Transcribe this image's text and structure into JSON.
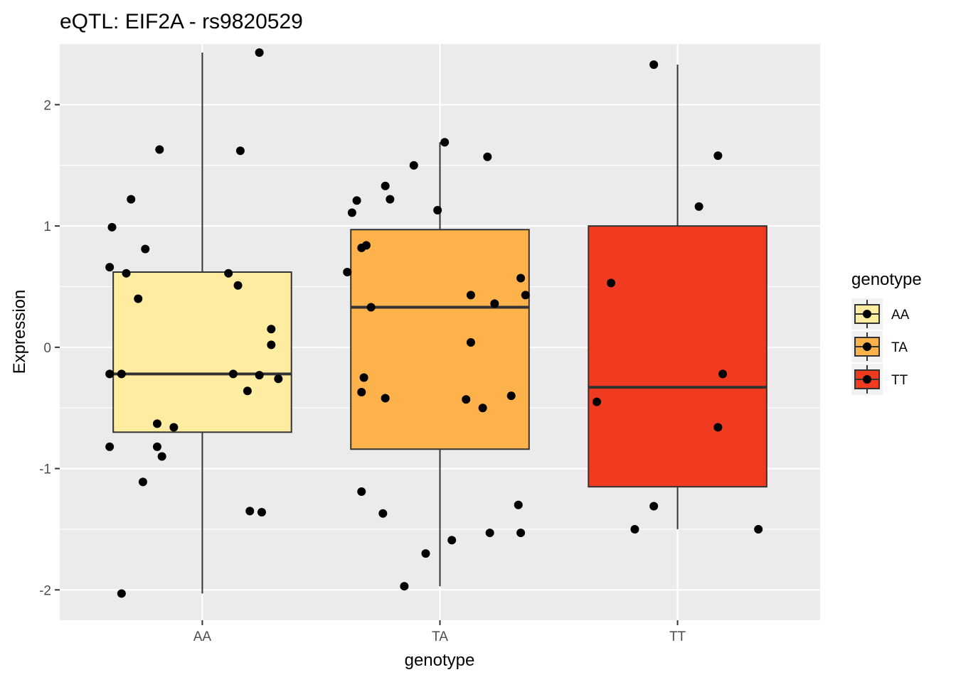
{
  "chart_data": {
    "type": "boxplot",
    "title": "eQTL: EIF2A - rs9820529",
    "xlabel": "genotype",
    "ylabel": "Expression",
    "categories": [
      "AA",
      "TA",
      "TT"
    ],
    "ylim": [
      -2.25,
      2.5
    ],
    "yticks": [
      -2,
      -1,
      0,
      1,
      2
    ],
    "ytick_labels": [
      "-2",
      "-1",
      "0",
      "1",
      "2"
    ],
    "grid": true,
    "legend": {
      "title": "genotype",
      "position": "right",
      "entries": [
        {
          "label": "AA",
          "color": "#FEEDA0"
        },
        {
          "label": "TA",
          "color": "#FDB24C"
        },
        {
          "label": "TT",
          "color": "#F03B20"
        }
      ]
    },
    "boxes": [
      {
        "category": "AA",
        "color": "#FEEDA0",
        "q1": -0.7,
        "median": -0.22,
        "q3": 0.62,
        "whisker_low": -2.03,
        "whisker_high": 2.43
      },
      {
        "category": "TA",
        "color": "#FDB24C",
        "q1": -0.84,
        "median": 0.33,
        "q3": 0.97,
        "whisker_low": -1.97,
        "whisker_high": 1.69
      },
      {
        "category": "TT",
        "color": "#F03B20",
        "q1": -1.15,
        "median": -0.33,
        "q3": 1.0,
        "whisker_low": -1.5,
        "whisker_high": 2.33
      }
    ],
    "points": [
      {
        "category": "AA",
        "jitter": 0.24,
        "y": 2.43
      },
      {
        "category": "AA",
        "jitter": -0.18,
        "y": 1.63
      },
      {
        "category": "AA",
        "jitter": 0.16,
        "y": 1.62
      },
      {
        "category": "AA",
        "jitter": -0.3,
        "y": 1.22
      },
      {
        "category": "AA",
        "jitter": -0.38,
        "y": 0.99
      },
      {
        "category": "AA",
        "jitter": -0.24,
        "y": 0.81
      },
      {
        "category": "AA",
        "jitter": -0.39,
        "y": 0.66
      },
      {
        "category": "AA",
        "jitter": -0.32,
        "y": 0.61
      },
      {
        "category": "AA",
        "jitter": 0.11,
        "y": 0.61
      },
      {
        "category": "AA",
        "jitter": 0.15,
        "y": 0.51
      },
      {
        "category": "AA",
        "jitter": -0.27,
        "y": 0.4
      },
      {
        "category": "AA",
        "jitter": 0.29,
        "y": 0.15
      },
      {
        "category": "AA",
        "jitter": 0.29,
        "y": 0.02
      },
      {
        "category": "AA",
        "jitter": -0.39,
        "y": -0.22
      },
      {
        "category": "AA",
        "jitter": -0.34,
        "y": -0.22
      },
      {
        "category": "AA",
        "jitter": 0.13,
        "y": -0.22
      },
      {
        "category": "AA",
        "jitter": 0.24,
        "y": -0.23
      },
      {
        "category": "AA",
        "jitter": 0.32,
        "y": -0.26
      },
      {
        "category": "AA",
        "jitter": 0.19,
        "y": -0.36
      },
      {
        "category": "AA",
        "jitter": -0.19,
        "y": -0.63
      },
      {
        "category": "AA",
        "jitter": -0.12,
        "y": -0.66
      },
      {
        "category": "AA",
        "jitter": -0.39,
        "y": -0.82
      },
      {
        "category": "AA",
        "jitter": -0.19,
        "y": -0.82
      },
      {
        "category": "AA",
        "jitter": -0.17,
        "y": -0.9
      },
      {
        "category": "AA",
        "jitter": -0.25,
        "y": -1.11
      },
      {
        "category": "AA",
        "jitter": 0.2,
        "y": -1.35
      },
      {
        "category": "AA",
        "jitter": 0.25,
        "y": -1.36
      },
      {
        "category": "AA",
        "jitter": -0.34,
        "y": -2.03
      },
      {
        "category": "TA",
        "jitter": 0.02,
        "y": 1.69
      },
      {
        "category": "TA",
        "jitter": 0.2,
        "y": 1.57
      },
      {
        "category": "TA",
        "jitter": -0.11,
        "y": 1.5
      },
      {
        "category": "TA",
        "jitter": -0.23,
        "y": 1.33
      },
      {
        "category": "TA",
        "jitter": -0.35,
        "y": 1.21
      },
      {
        "category": "TA",
        "jitter": -0.21,
        "y": 1.22
      },
      {
        "category": "TA",
        "jitter": -0.37,
        "y": 1.11
      },
      {
        "category": "TA",
        "jitter": -0.01,
        "y": 1.13
      },
      {
        "category": "TA",
        "jitter": -0.31,
        "y": 0.84
      },
      {
        "category": "TA",
        "jitter": -0.33,
        "y": 0.82
      },
      {
        "category": "TA",
        "jitter": -0.39,
        "y": 0.62
      },
      {
        "category": "TA",
        "jitter": 0.34,
        "y": 0.57
      },
      {
        "category": "TA",
        "jitter": 0.13,
        "y": 0.43
      },
      {
        "category": "TA",
        "jitter": 0.36,
        "y": 0.43
      },
      {
        "category": "TA",
        "jitter": 0.23,
        "y": 0.36
      },
      {
        "category": "TA",
        "jitter": -0.29,
        "y": 0.33
      },
      {
        "category": "TA",
        "jitter": 0.13,
        "y": 0.04
      },
      {
        "category": "TA",
        "jitter": -0.32,
        "y": -0.25
      },
      {
        "category": "TA",
        "jitter": -0.33,
        "y": -0.37
      },
      {
        "category": "TA",
        "jitter": -0.23,
        "y": -0.42
      },
      {
        "category": "TA",
        "jitter": 0.11,
        "y": -0.43
      },
      {
        "category": "TA",
        "jitter": 0.18,
        "y": -0.5
      },
      {
        "category": "TA",
        "jitter": 0.3,
        "y": -0.4
      },
      {
        "category": "TA",
        "jitter": -0.33,
        "y": -1.19
      },
      {
        "category": "TA",
        "jitter": -0.24,
        "y": -1.37
      },
      {
        "category": "TA",
        "jitter": 0.33,
        "y": -1.3
      },
      {
        "category": "TA",
        "jitter": 0.21,
        "y": -1.53
      },
      {
        "category": "TA",
        "jitter": 0.34,
        "y": -1.53
      },
      {
        "category": "TA",
        "jitter": 0.05,
        "y": -1.59
      },
      {
        "category": "TA",
        "jitter": -0.06,
        "y": -1.7
      },
      {
        "category": "TA",
        "jitter": -0.15,
        "y": -1.97
      },
      {
        "category": "TT",
        "jitter": -0.1,
        "y": 2.33
      },
      {
        "category": "TT",
        "jitter": 0.17,
        "y": 1.58
      },
      {
        "category": "TT",
        "jitter": 0.09,
        "y": 1.16
      },
      {
        "category": "TT",
        "jitter": -0.28,
        "y": 0.53
      },
      {
        "category": "TT",
        "jitter": 0.19,
        "y": -0.22
      },
      {
        "category": "TT",
        "jitter": -0.34,
        "y": -0.45
      },
      {
        "category": "TT",
        "jitter": 0.17,
        "y": -0.66
      },
      {
        "category": "TT",
        "jitter": -0.1,
        "y": -1.31
      },
      {
        "category": "TT",
        "jitter": -0.18,
        "y": -1.5
      },
      {
        "category": "TT",
        "jitter": 0.34,
        "y": -1.5
      }
    ]
  }
}
